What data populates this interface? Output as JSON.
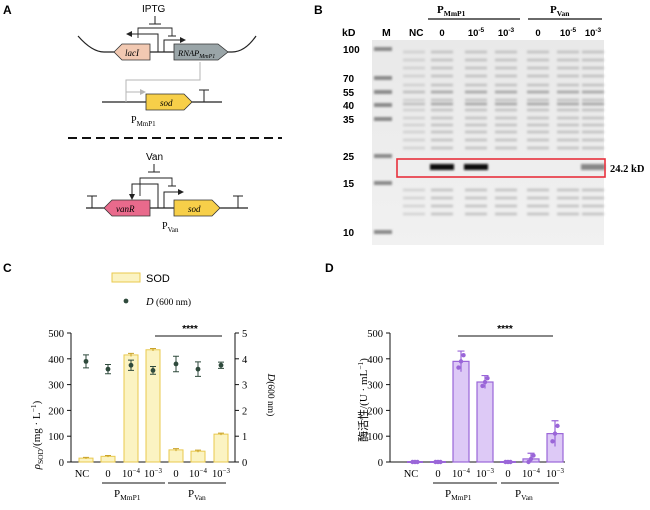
{
  "panels": {
    "a": {
      "label": "A",
      "inducer1": "IPTG",
      "gene_laci": "lacI",
      "gene_rnap": "RNAP",
      "gene_rnap_sub": "MmP1",
      "gene_sod1": "sod",
      "promoter1_main": "P",
      "promoter1_sub": "MmP1",
      "inducer2": "Van",
      "gene_vanr": "vanR",
      "gene_sod2": "sod",
      "promoter2_main": "P",
      "promoter2_sub": "Van"
    },
    "b": {
      "label": "B",
      "kd_header": "kD",
      "marker_header": "M",
      "nc_header": "NC",
      "group1_main": "P",
      "group1_sub": "MmP1",
      "group2_main": "P",
      "group2_sub": "Van",
      "lane_labels": [
        {
          "base": "0",
          "exp": ""
        },
        {
          "base": "10",
          "exp": "-5"
        },
        {
          "base": "10",
          "exp": "-3"
        },
        {
          "base": "0",
          "exp": ""
        },
        {
          "base": "10",
          "exp": "-5"
        },
        {
          "base": "10",
          "exp": "-3"
        }
      ],
      "ladder": [
        "100",
        "70",
        "55",
        "40",
        "35",
        "25",
        "15",
        "10"
      ],
      "band_label": "24.2 kD",
      "highlight_color": "#e8303c"
    },
    "c": {
      "label": "C",
      "legend_sod": "SOD",
      "legend_d_main": "D",
      "legend_d_unit": " (600 nm)",
      "y_left_label_main": "ρ",
      "y_left_label_sub": "SOD",
      "y_left_label_rest": "/(mg · L",
      "y_left_label_exp": "−1",
      "y_left_label_end": ")",
      "y_right_label_main": "D",
      "y_right_label_rest": "(600 nm)",
      "significance": "****",
      "group1_main": "P",
      "group1_sub": "MmP1",
      "group2_main": "P",
      "group2_sub": "Van",
      "bar_color": "#fbf3c2",
      "bar_edge": "#e9c94e",
      "dot_color": "#2f4a3c"
    },
    "d": {
      "label": "D",
      "y_label_main": "酶活性/(U · mL",
      "y_label_exp": "−1",
      "y_label_end": ")",
      "significance": "****",
      "group1_main": "P",
      "group1_sub": "MmP1",
      "group2_main": "P",
      "group2_sub": "Van",
      "bar_color": "#ddc9f6",
      "bar_edge": "#9a66d8"
    }
  },
  "chart_data": [
    {
      "type": "bar",
      "panel": "C",
      "categories": [
        {
          "base": "NC",
          "exp": ""
        },
        {
          "base": "0",
          "exp": ""
        },
        {
          "base": "10",
          "exp": "−4"
        },
        {
          "base": "10",
          "exp": "−3"
        },
        {
          "base": "0",
          "exp": ""
        },
        {
          "base": "10",
          "exp": "−4"
        },
        {
          "base": "10",
          "exp": "−3"
        }
      ],
      "series": [
        {
          "name": "SOD",
          "axis": "left",
          "values": [
            15,
            22,
            415,
            435,
            47,
            42,
            108
          ],
          "errors": [
            3,
            3,
            6,
            5,
            5,
            4,
            4
          ]
        },
        {
          "name": "D (600 nm)",
          "axis": "right",
          "type": "scatter",
          "values": [
            3.9,
            3.6,
            3.75,
            3.55,
            3.8,
            3.6,
            3.75
          ],
          "errors": [
            0.25,
            0.18,
            0.2,
            0.15,
            0.3,
            0.28,
            0.12
          ]
        }
      ],
      "ylim_left": [
        0,
        500
      ],
      "yticks_left": [
        "0",
        "100",
        "200",
        "300",
        "400",
        "500"
      ],
      "ylim_right": [
        0,
        5
      ],
      "yticks_right": [
        "0",
        "1",
        "2",
        "3",
        "4",
        "5"
      ],
      "significance_span": [
        3,
        6
      ]
    },
    {
      "type": "bar",
      "panel": "D",
      "categories": [
        {
          "base": "NC",
          "exp": ""
        },
        {
          "base": "0",
          "exp": ""
        },
        {
          "base": "10",
          "exp": "−4"
        },
        {
          "base": "10",
          "exp": "−3"
        },
        {
          "base": "0",
          "exp": ""
        },
        {
          "base": "10",
          "exp": "−4"
        },
        {
          "base": "10",
          "exp": "−3"
        }
      ],
      "series": [
        {
          "name": "",
          "values": [
            0,
            0,
            390,
            310,
            0,
            12,
            110
          ],
          "errors": [
            0,
            0,
            40,
            25,
            0,
            22,
            50
          ]
        }
      ],
      "ylim": [
        0,
        500
      ],
      "yticks": [
        "0",
        "100",
        "200",
        "300",
        "400",
        "500"
      ],
      "significance_span": [
        2,
        6
      ]
    }
  ]
}
